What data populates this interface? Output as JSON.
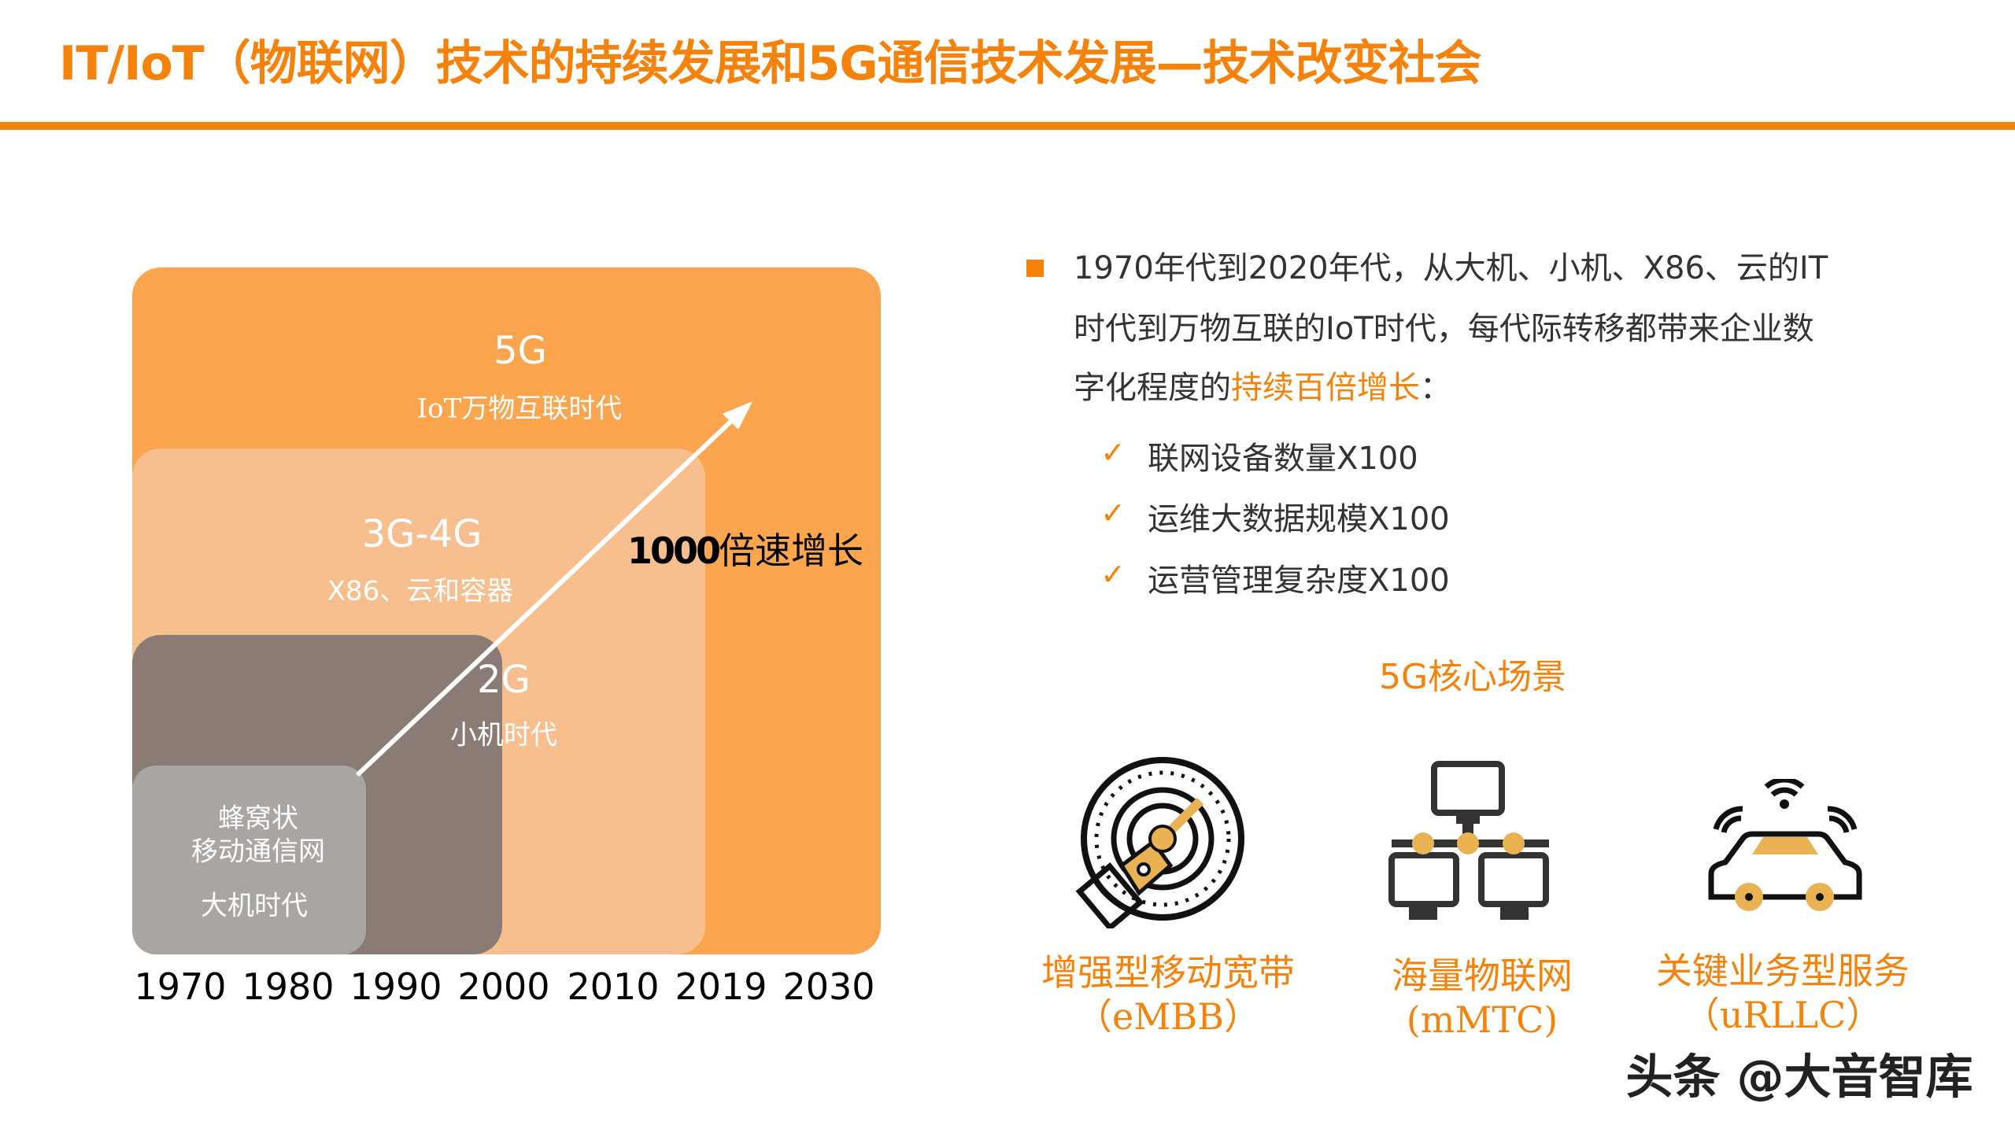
{
  "title": "IT/IoT（物联网）技术的持续发展和5G通信技术发展—技术改变社会",
  "colors": {
    "accent": "#F5820A",
    "box_5g": "#FBA54E",
    "box_3g4g": "#F8BF8E",
    "box_2g": "#8A7C74",
    "box_cellular": "#A8A5A3"
  },
  "diagram": {
    "eras": [
      {
        "name": "5G",
        "desc": "IoT万物互联时代"
      },
      {
        "name": "3G-4G",
        "desc": "X86、云和容器"
      },
      {
        "name": "2G",
        "desc": "小机时代"
      },
      {
        "name_line1": "蜂窝状",
        "name_line2": "移动通信网",
        "desc": "大机时代"
      }
    ],
    "growth_number": "1000",
    "growth_text": "倍速增长",
    "years": [
      "1970",
      "1980",
      "1990",
      "2000",
      "2010",
      "2019",
      "2030"
    ]
  },
  "summary": {
    "line1": "1970年代到2020年代，从大机、小机、X86、云的IT",
    "line2": "时代到万物互联的IoT时代，每代际转移都带来企业数",
    "line3_prefix": "字化程度的",
    "line3_highlight": "持续百倍增长",
    "line3_suffix": "：",
    "checks": [
      "联网设备数量X100",
      "运维大数据规模X100",
      "运营管理复杂度X100"
    ],
    "check_icon": "✓"
  },
  "scenarios": {
    "heading": "5G核心场景",
    "items": [
      {
        "icon": "speedometer-icon",
        "label": "增强型移动宽带",
        "abbr": "（eMBB）"
      },
      {
        "icon": "network-icon",
        "label": "海量物联网",
        "abbr": "(mMTC)"
      },
      {
        "icon": "connected-car-icon",
        "label": "关键业务型服务",
        "abbr": "（uRLLC）"
      }
    ]
  },
  "watermark": "头条 @大音智库"
}
